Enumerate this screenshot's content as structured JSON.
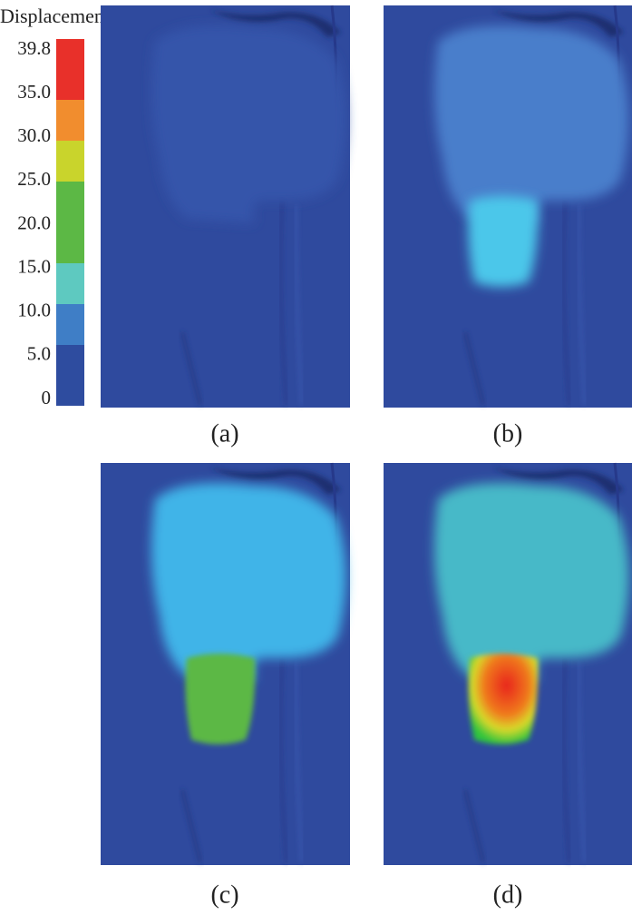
{
  "colorbar": {
    "title": "Displacement",
    "labels": [
      "39.8",
      "35.0",
      "30.0",
      "25.0",
      "20.0",
      "15.0",
      "10.0",
      "5.0",
      "0"
    ]
  },
  "panels": [
    {
      "label": "(a)"
    },
    {
      "label": "(b)"
    },
    {
      "label": "(c)"
    },
    {
      "label": "(d)"
    }
  ]
}
